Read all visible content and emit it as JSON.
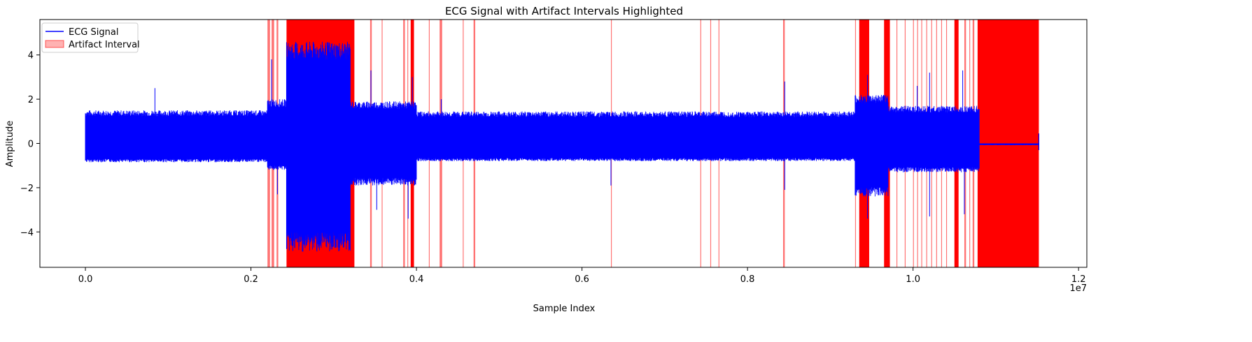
{
  "chart_data": {
    "type": "line",
    "title": "ECG Signal with Artifact Intervals Highlighted",
    "xlabel": "Sample Index",
    "ylabel": "Amplitude",
    "x_offset_label": "1e7",
    "xlim": [
      -0.055,
      1.21
    ],
    "ylim": [
      -5.6,
      5.6
    ],
    "x_unit_multiplier": 10000000,
    "x_ticks": [
      0.0,
      0.2,
      0.4,
      0.6,
      0.8,
      1.0,
      1.2
    ],
    "x_tick_labels": [
      "0.0",
      "0.2",
      "0.4",
      "0.6",
      "0.8",
      "1.0",
      "1.2"
    ],
    "y_ticks": [
      -4,
      -2,
      0,
      2,
      4
    ],
    "y_tick_labels": [
      "−4",
      "−2",
      "0",
      "2",
      "4"
    ],
    "legend_position": "top-left",
    "legend": [
      {
        "label": "ECG Signal",
        "kind": "line",
        "color": "#0000ff"
      },
      {
        "label": "Artifact Interval",
        "kind": "patch",
        "color": "#ff0000"
      }
    ],
    "series": [
      {
        "name": "ECG Signal",
        "color": "#0000ff",
        "segments": [
          {
            "x": [
              0.0,
              0.22
            ],
            "upper": 1.5,
            "lower": -0.85
          },
          {
            "x": [
              0.22,
              0.243
            ],
            "upper": 2.0,
            "lower": -1.2
          },
          {
            "x": [
              0.243,
              0.32
            ],
            "upper": 4.6,
            "lower": -4.9
          },
          {
            "x": [
              0.32,
              0.4
            ],
            "upper": 1.9,
            "lower": -1.9
          },
          {
            "x": [
              0.4,
              0.93
            ],
            "upper": 1.45,
            "lower": -0.8
          },
          {
            "x": [
              0.93,
              0.97
            ],
            "upper": 2.2,
            "lower": -2.4
          },
          {
            "x": [
              0.97,
              1.08
            ],
            "upper": 1.7,
            "lower": -1.3
          },
          {
            "x": [
              1.08,
              1.152
            ],
            "upper": 0.0,
            "lower": -0.08
          }
        ],
        "spikes": [
          [
            0.084,
            2.5
          ],
          [
            0.225,
            3.8
          ],
          [
            0.232,
            -2.3
          ],
          [
            0.345,
            3.3
          ],
          [
            0.352,
            -3.0
          ],
          [
            0.395,
            3.0
          ],
          [
            0.39,
            -3.4
          ],
          [
            0.43,
            2.0
          ],
          [
            0.635,
            -1.9
          ],
          [
            0.845,
            2.8
          ],
          [
            0.845,
            -2.1
          ],
          [
            0.945,
            3.1
          ],
          [
            0.945,
            -3.4
          ],
          [
            1.02,
            3.2
          ],
          [
            1.02,
            -3.3
          ],
          [
            1.06,
            3.3
          ],
          [
            1.062,
            -3.2
          ],
          [
            1.005,
            2.6
          ]
        ]
      }
    ],
    "artifact_intervals": [
      [
        0.22,
        0.223
      ],
      [
        0.225,
        0.228
      ],
      [
        0.231,
        0.233
      ],
      [
        0.243,
        0.325
      ],
      [
        0.344,
        0.346
      ],
      [
        0.358,
        0.359
      ],
      [
        0.384,
        0.386
      ],
      [
        0.389,
        0.39
      ],
      [
        0.393,
        0.397
      ],
      [
        0.415,
        0.416
      ],
      [
        0.428,
        0.431
      ],
      [
        0.456,
        0.457
      ],
      [
        0.469,
        0.471
      ],
      [
        0.635,
        0.636
      ],
      [
        0.743,
        0.744
      ],
      [
        0.755,
        0.756
      ],
      [
        0.765,
        0.766
      ],
      [
        0.843,
        0.845
      ],
      [
        0.93,
        0.931
      ],
      [
        0.935,
        0.947
      ],
      [
        0.965,
        0.972
      ],
      [
        0.98,
        0.981
      ],
      [
        0.99,
        0.991
      ],
      [
        1.0,
        1.001
      ],
      [
        1.005,
        1.006
      ],
      [
        1.01,
        1.011
      ],
      [
        1.016,
        1.017
      ],
      [
        1.022,
        1.023
      ],
      [
        1.028,
        1.029
      ],
      [
        1.034,
        1.035
      ],
      [
        1.04,
        1.041
      ],
      [
        1.05,
        1.055
      ],
      [
        1.062,
        1.064
      ],
      [
        1.068,
        1.069
      ],
      [
        1.072,
        1.074
      ],
      [
        1.078,
        1.152
      ]
    ]
  }
}
